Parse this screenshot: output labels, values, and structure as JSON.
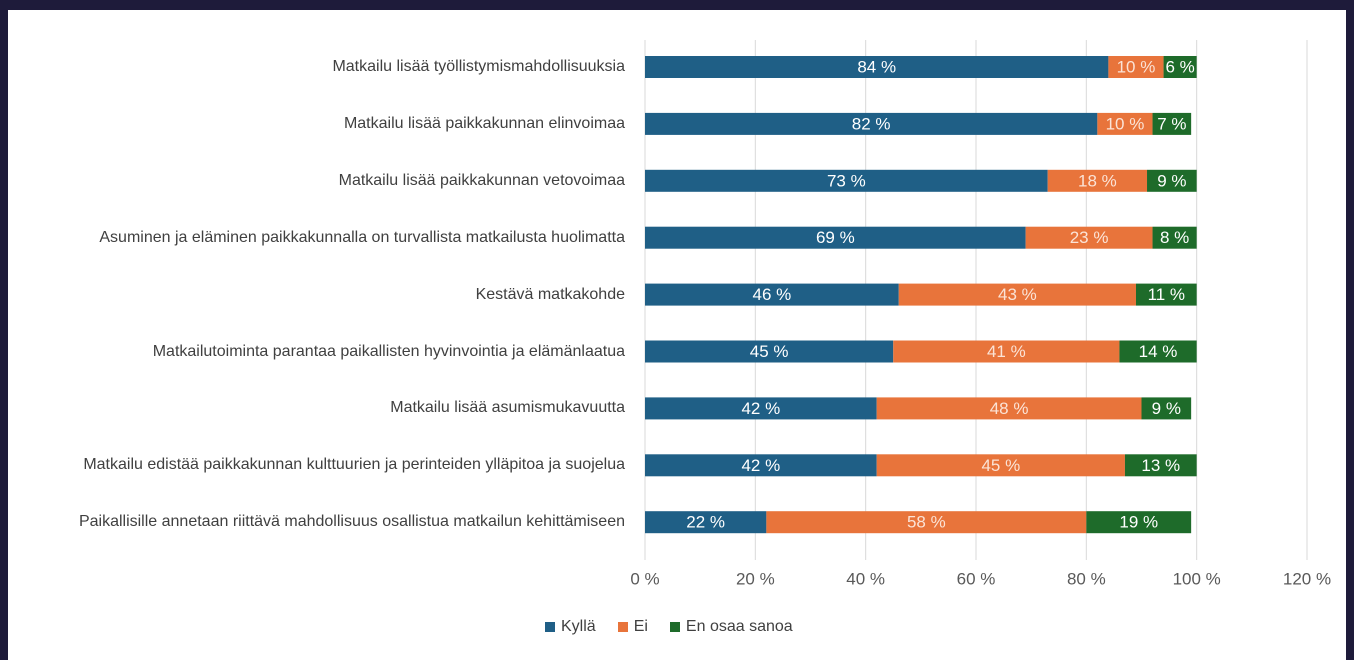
{
  "chart_data": {
    "type": "stacked_bar_horizontal",
    "categories": [
      "Matkailu lisää työllistymismahdollisuuksia",
      "Matkailu lisää paikkakunnan elinvoimaa",
      "Matkailu lisää paikkakunnan vetovoimaa",
      "Asuminen ja eläminen paikkakunnalla on turvallista matkailusta huolimatta",
      "Kestävä matkakohde",
      "Matkailutoiminta parantaa paikallisten hyvinvointia ja elämänlaatua",
      "Matkailu lisää asumismukavuutta",
      "Matkailu edistää paikkakunnan kulttuurien ja perinteiden ylläpitoa ja suojelua",
      "Paikallisille annetaan riittävä mahdollisuus osallistua matkailun kehittämiseen"
    ],
    "series": [
      {
        "name": "Kyllä",
        "color": "#1f5f86",
        "values": [
          84,
          82,
          73,
          69,
          46,
          45,
          42,
          42,
          22
        ],
        "value_labels": [
          "84 %",
          "82 %",
          "73 %",
          "69 %",
          "46 %",
          "45 %",
          "42 %",
          "42 %",
          "22 %"
        ]
      },
      {
        "name": "Ei",
        "color": "#e8743b",
        "values": [
          10,
          10,
          18,
          23,
          43,
          41,
          48,
          45,
          58
        ],
        "value_labels": [
          "10 %",
          "10 %",
          "18 %",
          "23 %",
          "43 %",
          "41 %",
          "48 %",
          "45 %",
          "58 %"
        ]
      },
      {
        "name": "En osaa sanoa",
        "color": "#1e6b2a",
        "values": [
          6,
          7,
          9,
          8,
          11,
          14,
          9,
          13,
          19
        ],
        "value_labels": [
          "6 %",
          "7 %",
          "9 %",
          "8 %",
          "11 %",
          "14 %",
          "9 %",
          "13 %",
          "19 %"
        ]
      }
    ],
    "xlim": [
      0,
      120
    ],
    "xticks": [
      {
        "value": 0,
        "label": "0 %"
      },
      {
        "value": 20,
        "label": "20 %"
      },
      {
        "value": 40,
        "label": "40 %"
      },
      {
        "value": 60,
        "label": "60 %"
      },
      {
        "value": 80,
        "label": "80 %"
      },
      {
        "value": 100,
        "label": "100 %"
      },
      {
        "value": 120,
        "label": "120 %"
      }
    ],
    "grid": true,
    "legend": "bottom"
  }
}
